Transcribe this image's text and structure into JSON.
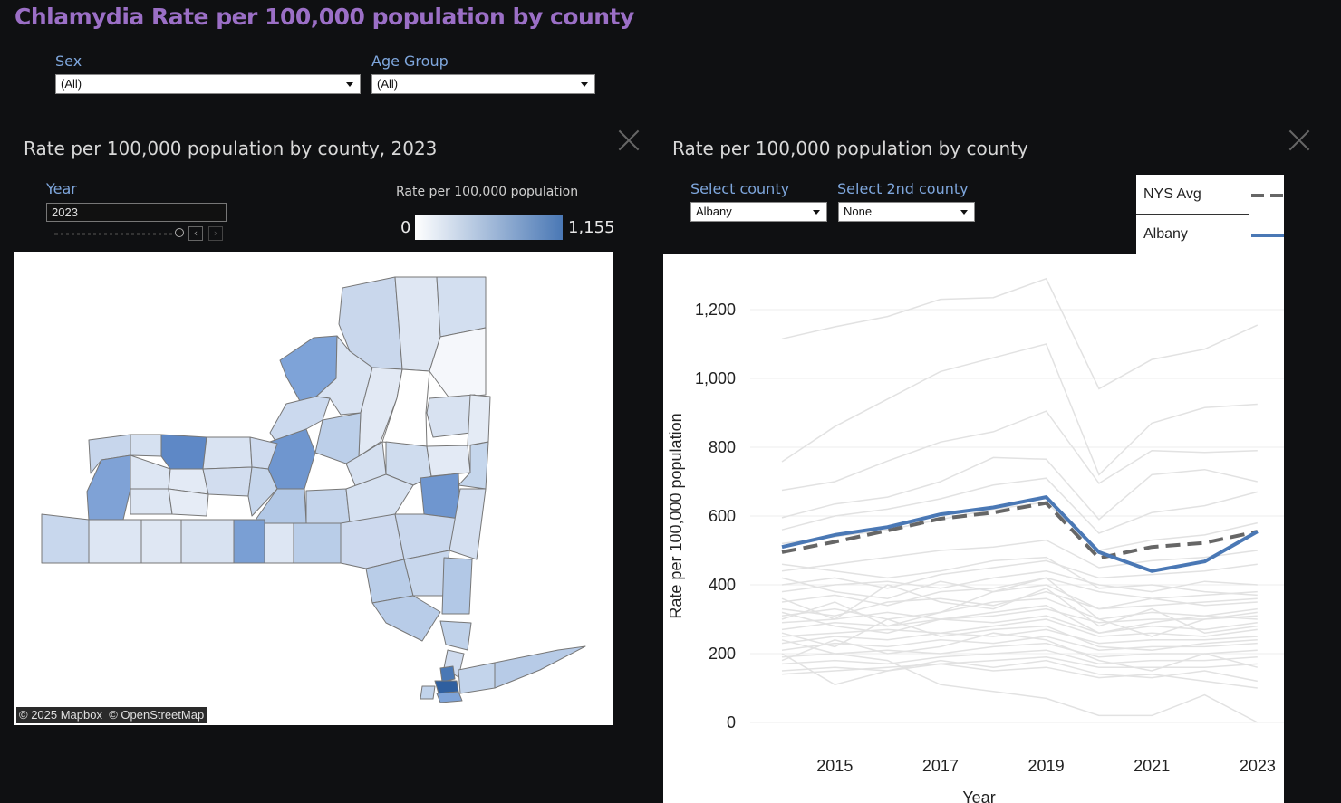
{
  "page": {
    "title": "Chlamydia Rate per 100,000 population by county"
  },
  "filters": {
    "sex": {
      "label": "Sex",
      "value": "(All)"
    },
    "age_group": {
      "label": "Age Group",
      "value": "(All)"
    }
  },
  "map_panel": {
    "title": "Rate per 100,000 population by county, 2023",
    "year_label": "Year",
    "year_value": "2023",
    "legend_title": "Rate per 100,000 population",
    "legend_min": "0",
    "legend_max": "1,155",
    "color_low": "#ffffff",
    "color_high": "#4a78b5",
    "attribution_mapbox": "© 2025 Mapbox",
    "attribution_osm": "© OpenStreetMap"
  },
  "chart_panel": {
    "title": "Rate per 100,000 population by county",
    "select_county_label": "Select county",
    "select_county_value": "Albany",
    "select_2nd_county_label": "Select 2nd county",
    "select_2nd_county_value": "None",
    "legend": [
      {
        "label": "NYS Avg",
        "color": "#666666",
        "style": "dashed"
      },
      {
        "label": "Albany",
        "color": "#4a78b5",
        "style": "solid"
      }
    ]
  },
  "chart_data": {
    "type": "line",
    "xlabel": "Year",
    "ylabel": "Rate per 100,000 population",
    "x": [
      2014,
      2015,
      2016,
      2017,
      2018,
      2019,
      2020,
      2021,
      2022,
      2023
    ],
    "x_ticks": [
      "2015",
      "2017",
      "2019",
      "2021",
      "2023"
    ],
    "y_ticks": [
      "0",
      "200",
      "400",
      "600",
      "800",
      "1,000",
      "1,200"
    ],
    "ylim": [
      0,
      1200
    ],
    "series": [
      {
        "name": "NYS Avg",
        "values": [
          495,
          525,
          558,
          592,
          610,
          638,
          478,
          510,
          522,
          555
        ],
        "color": "#666666",
        "style": "dashed"
      },
      {
        "name": "Albany",
        "values": [
          510,
          545,
          568,
          605,
          625,
          655,
          495,
          440,
          468,
          555
        ],
        "color": "#4a78b5",
        "style": "solid"
      }
    ],
    "background_series_color": "#e2e2e2",
    "background_series": [
      [
        1115,
        1150,
        1180,
        1230,
        1235,
        1290,
        970,
        1055,
        1085,
        1155
      ],
      [
        758,
        860,
        940,
        1020,
        1060,
        1100,
        720,
        870,
        915,
        925
      ],
      [
        675,
        700,
        760,
        815,
        845,
        905,
        695,
        790,
        785,
        790
      ],
      [
        595,
        635,
        655,
        700,
        770,
        765,
        590,
        720,
        735,
        700
      ],
      [
        560,
        600,
        620,
        650,
        690,
        710,
        550,
        610,
        630,
        670
      ],
      [
        520,
        540,
        560,
        590,
        620,
        640,
        500,
        530,
        545,
        580
      ],
      [
        440,
        460,
        480,
        500,
        510,
        530,
        450,
        470,
        480,
        500
      ],
      [
        400,
        420,
        390,
        430,
        450,
        470,
        420,
        430,
        440,
        460
      ],
      [
        380,
        400,
        410,
        390,
        420,
        440,
        400,
        380,
        410,
        400
      ],
      [
        350,
        370,
        340,
        380,
        390,
        420,
        380,
        360,
        370,
        380
      ],
      [
        330,
        310,
        350,
        360,
        340,
        380,
        330,
        340,
        350,
        360
      ],
      [
        310,
        330,
        300,
        320,
        350,
        360,
        300,
        320,
        310,
        330
      ],
      [
        290,
        300,
        320,
        300,
        310,
        330,
        290,
        300,
        300,
        310
      ],
      [
        270,
        290,
        280,
        300,
        290,
        310,
        260,
        280,
        270,
        290
      ],
      [
        250,
        260,
        270,
        260,
        280,
        300,
        250,
        260,
        250,
        270
      ],
      [
        230,
        250,
        240,
        260,
        250,
        270,
        230,
        240,
        240,
        250
      ],
      [
        210,
        230,
        220,
        240,
        230,
        250,
        210,
        220,
        220,
        230
      ],
      [
        190,
        200,
        210,
        200,
        220,
        230,
        190,
        200,
        200,
        210
      ],
      [
        170,
        180,
        170,
        190,
        200,
        210,
        170,
        180,
        180,
        190
      ],
      [
        150,
        160,
        150,
        170,
        180,
        190,
        160,
        160,
        160,
        170
      ],
      [
        240,
        200,
        180,
        110,
        90,
        70,
        20,
        20,
        80,
        0
      ],
      [
        200,
        110,
        150,
        180,
        160,
        180,
        140,
        130,
        150,
        120
      ],
      [
        300,
        350,
        280,
        320,
        380,
        420,
        300,
        250,
        300,
        320
      ],
      [
        360,
        300,
        400,
        350,
        330,
        390,
        280,
        330,
        260,
        280
      ],
      [
        180,
        240,
        200,
        220,
        260,
        240,
        180,
        150,
        200,
        160
      ],
      [
        420,
        380,
        360,
        410,
        380,
        400,
        330,
        360,
        340,
        350
      ],
      [
        260,
        220,
        300,
        250,
        270,
        280,
        220,
        210,
        230,
        240
      ],
      [
        320,
        280,
        260,
        300,
        320,
        340,
        260,
        290,
        310,
        300
      ],
      [
        140,
        150,
        160,
        170,
        150,
        160,
        130,
        140,
        120,
        100
      ],
      [
        460,
        440,
        420,
        440,
        470,
        480,
        390,
        400,
        380,
        370
      ]
    ]
  }
}
